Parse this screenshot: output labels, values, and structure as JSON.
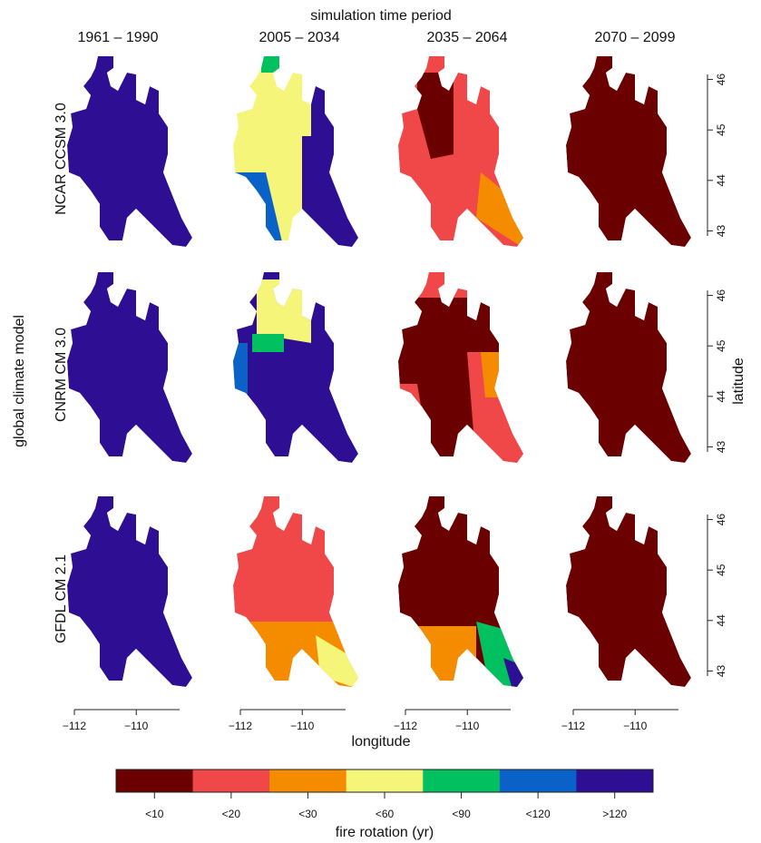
{
  "chart_data": {
    "type": "raster-map-grid",
    "title": "simulation time period",
    "columns": [
      "1961 – 1990",
      "2005 – 2034",
      "2035 – 2064",
      "2070 – 2099"
    ],
    "rows": [
      "NCAR CCSM 3.0",
      "CNRM CM 3.0",
      "GFDL CM 2.1"
    ],
    "row_axis_label": "global climate model",
    "x_label": "longitude",
    "y_label": "latitude",
    "xlim": [
      -112,
      -108.6
    ],
    "xticks": [
      {
        "value": -112,
        "label": "−112"
      },
      {
        "value": -110,
        "label": "−110"
      }
    ],
    "ylim": [
      42.9,
      46.1
    ],
    "yticks": [
      43,
      44,
      45,
      46
    ],
    "maps": [
      [
        "#2e0f94",
        "#f5f57a",
        "#f04848",
        "#6b0000"
      ],
      [
        "#2e0f94",
        "#2e0f94",
        "#6b0000",
        "#6b0000"
      ],
      [
        "#2e0f94",
        "#f04848",
        "#6b0000",
        "#6b0000"
      ]
    ],
    "legend": {
      "title": "fire rotation (yr)",
      "labels": [
        "<10",
        "<20",
        "<30",
        "<60",
        "<90",
        "<120",
        ">120"
      ],
      "colors": [
        "#6b0000",
        "#f04848",
        "#f58c00",
        "#f5f57a",
        "#00c060",
        "#0a62c8",
        "#2e0f94"
      ]
    }
  }
}
